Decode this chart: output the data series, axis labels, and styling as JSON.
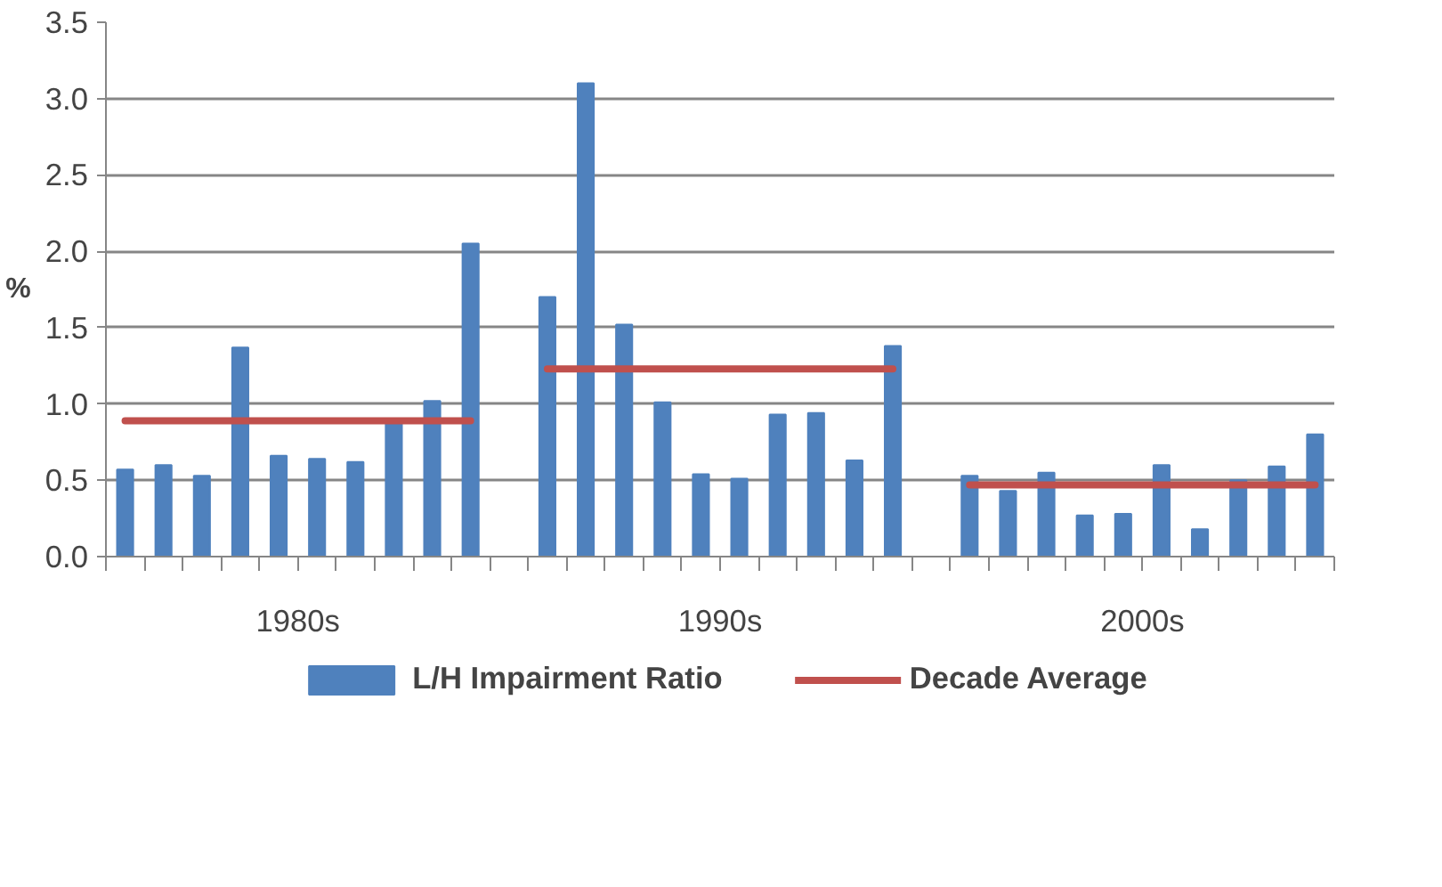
{
  "chart_data": {
    "type": "bar",
    "ylabel": "%",
    "categories": [
      null,
      null,
      null,
      null,
      null,
      null,
      null,
      null,
      null,
      null,
      null,
      null,
      null,
      null,
      null,
      null,
      null,
      null,
      null,
      null,
      null,
      null,
      null,
      null,
      null,
      null,
      null,
      null,
      null,
      null,
      null,
      null
    ],
    "ylim": [
      0,
      3.5
    ],
    "yticks": [
      {
        "value": 0,
        "label": "0.0"
      },
      {
        "value": 0.5,
        "label": "0.5"
      },
      {
        "value": 1,
        "label": "1.0"
      },
      {
        "value": 1.5,
        "label": "1.5"
      },
      {
        "value": 2,
        "label": "2.0"
      },
      {
        "value": 2.5,
        "label": "2.5"
      },
      {
        "value": 3,
        "label": "3.0"
      },
      {
        "value": 3.5,
        "label": "3.5"
      }
    ],
    "grid": "y",
    "legend": "bottom",
    "annotations": [
      "1980s",
      "1990s",
      "2000s"
    ],
    "series": [
      {
        "name": "L/H Impairment Ratio",
        "color": "#4f81bd",
        "values": [
          0.57,
          0.6,
          0.53,
          1.37,
          0.66,
          0.64,
          0.62,
          0.87,
          1.02,
          2.05,
          null,
          1.7,
          3.1,
          1.52,
          1.01,
          0.54,
          0.51,
          0.93,
          0.94,
          0.63,
          1.38,
          null,
          0.53,
          0.43,
          0.55,
          0.27,
          0.28,
          0.6,
          0.18,
          0.5,
          0.59,
          0.8
        ]
      },
      {
        "name": "Decade Average",
        "type": "line",
        "color": "#c0504d",
        "values": [
          0.89,
          0.89,
          0.89,
          0.89,
          0.89,
          0.89,
          0.89,
          0.89,
          0.89,
          0.89,
          null,
          1.23,
          1.23,
          1.23,
          1.23,
          1.23,
          1.23,
          1.23,
          1.23,
          1.23,
          1.23,
          null,
          0.47,
          0.47,
          0.47,
          0.47,
          0.47,
          0.47,
          0.47,
          0.47,
          0.47,
          0.47
        ]
      }
    ]
  }
}
